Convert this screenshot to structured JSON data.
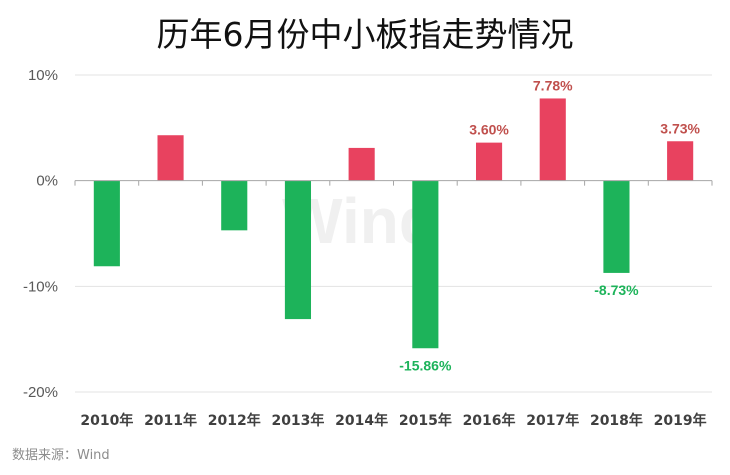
{
  "title": "历年6月份中小板指走势情况",
  "source": "数据来源：Wind",
  "watermark": "Wind",
  "colors": {
    "positive": "#e8425f",
    "negative": "#1db35a",
    "positive_label": "#c0504d",
    "negative_label": "#1db35a",
    "grid": "#e3e3e3",
    "axis": "#a6a6a6"
  },
  "chart_data": {
    "type": "bar",
    "title": "历年6月份中小板指走势情况",
    "xlabel": "",
    "ylabel": "",
    "ylim": [
      -20,
      10
    ],
    "yticks": [
      10,
      0,
      -10,
      -20
    ],
    "ytick_labels": [
      "10%",
      "0%",
      "-10%",
      "-20%"
    ],
    "grid": true,
    "categories": [
      "2010年",
      "2011年",
      "2012年",
      "2013年",
      "2014年",
      "2015年",
      "2016年",
      "2017年",
      "2018年",
      "2019年"
    ],
    "values": [
      -8.1,
      4.3,
      -4.7,
      -13.1,
      3.1,
      -15.86,
      3.6,
      7.78,
      -8.73,
      3.73
    ],
    "data_labels": [
      {
        "index": 5,
        "text": "-15.86%"
      },
      {
        "index": 6,
        "text": "3.60%"
      },
      {
        "index": 7,
        "text": "7.78%"
      },
      {
        "index": 8,
        "text": "-8.73%"
      },
      {
        "index": 9,
        "text": "3.73%"
      }
    ]
  }
}
